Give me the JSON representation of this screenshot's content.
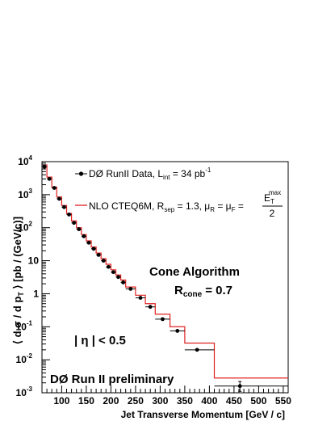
{
  "chart_data": {
    "type": "scatter",
    "xlabel": "Jet Transverse Momentum [GeV / c]",
    "ylabel": "⟨ d σ / d pT ⟩ [pb / (GeV/c)]",
    "xlim": [
      60,
      560
    ],
    "ylim": [
      0.001,
      10000
    ],
    "yscale": "log",
    "grid": false,
    "x_ticks": [
      100,
      150,
      200,
      250,
      300,
      350,
      400,
      450,
      500,
      550
    ],
    "y_ticks": [
      {
        "value": 0.001,
        "mantissa": "10",
        "exp": "-3"
      },
      {
        "value": 0.01,
        "mantissa": "10",
        "exp": "-2"
      },
      {
        "value": 0.1,
        "mantissa": "10",
        "exp": "-1"
      },
      {
        "value": 1,
        "mantissa": "1",
        "exp": ""
      },
      {
        "value": 10,
        "mantissa": "10",
        "exp": ""
      },
      {
        "value": 100,
        "mantissa": "10",
        "exp": "2"
      },
      {
        "value": 1000,
        "mantissa": "10",
        "exp": "3"
      },
      {
        "value": 10000,
        "mantissa": "10",
        "exp": "4"
      }
    ],
    "series": [
      {
        "name": "DØ RunII Data, L_int = 34 pb^-1",
        "style": "points",
        "color": "#000000",
        "points": [
          {
            "x": 65,
            "y": 7000,
            "xlo": 60,
            "xhi": 70
          },
          {
            "x": 75,
            "y": 3000,
            "xlo": 70,
            "xhi": 80
          },
          {
            "x": 85,
            "y": 1600,
            "xlo": 80,
            "xhi": 90
          },
          {
            "x": 95,
            "y": 750,
            "xlo": 90,
            "xhi": 100
          },
          {
            "x": 105,
            "y": 420,
            "xlo": 100,
            "xhi": 110
          },
          {
            "x": 115,
            "y": 250,
            "xlo": 110,
            "xhi": 120
          },
          {
            "x": 125,
            "y": 140,
            "xlo": 120,
            "xhi": 130
          },
          {
            "x": 135,
            "y": 90,
            "xlo": 130,
            "xhi": 140
          },
          {
            "x": 145,
            "y": 55,
            "xlo": 140,
            "xhi": 150
          },
          {
            "x": 155,
            "y": 35,
            "xlo": 150,
            "xhi": 160
          },
          {
            "x": 165,
            "y": 23,
            "xlo": 160,
            "xhi": 170
          },
          {
            "x": 175,
            "y": 15,
            "xlo": 170,
            "xhi": 180
          },
          {
            "x": 185,
            "y": 10,
            "xlo": 180,
            "xhi": 190
          },
          {
            "x": 195,
            "y": 6.5,
            "xlo": 190,
            "xhi": 200
          },
          {
            "x": 205,
            "y": 4.5,
            "xlo": 200,
            "xhi": 210
          },
          {
            "x": 215,
            "y": 3.2,
            "xlo": 210,
            "xhi": 220
          },
          {
            "x": 225,
            "y": 2.2,
            "xlo": 220,
            "xhi": 230
          },
          {
            "x": 240,
            "y": 1.4,
            "xlo": 230,
            "xhi": 250
          },
          {
            "x": 260,
            "y": 0.75,
            "xlo": 250,
            "xhi": 270
          },
          {
            "x": 280,
            "y": 0.4,
            "xlo": 270,
            "xhi": 290
          },
          {
            "x": 305,
            "y": 0.17,
            "xlo": 290,
            "xhi": 320
          },
          {
            "x": 335,
            "y": 0.075,
            "xlo": 320,
            "xhi": 350
          },
          {
            "x": 375,
            "y": 0.02,
            "xlo": 350,
            "xhi": 410
          },
          {
            "x": 462,
            "y": 0.0016,
            "xlo": 410,
            "xhi": 560,
            "ylo": 0.0011,
            "yhi": 0.0022
          }
        ]
      },
      {
        "name": "NLO CTEQ6M, R_sep = 1.3, μ_R = μ_F = E_T^max / 2",
        "style": "histogram",
        "color": "#e02020",
        "bins": [
          {
            "lo": 60,
            "hi": 70,
            "y": 8000
          },
          {
            "lo": 70,
            "hi": 80,
            "y": 3400
          },
          {
            "lo": 80,
            "hi": 90,
            "y": 1700
          },
          {
            "lo": 90,
            "hi": 100,
            "y": 850
          },
          {
            "lo": 100,
            "hi": 110,
            "y": 470
          },
          {
            "lo": 110,
            "hi": 120,
            "y": 270
          },
          {
            "lo": 120,
            "hi": 130,
            "y": 160
          },
          {
            "lo": 130,
            "hi": 140,
            "y": 100
          },
          {
            "lo": 140,
            "hi": 150,
            "y": 62
          },
          {
            "lo": 150,
            "hi": 160,
            "y": 40
          },
          {
            "lo": 160,
            "hi": 170,
            "y": 26
          },
          {
            "lo": 170,
            "hi": 180,
            "y": 17
          },
          {
            "lo": 180,
            "hi": 190,
            "y": 11.5
          },
          {
            "lo": 190,
            "hi": 200,
            "y": 7.8
          },
          {
            "lo": 200,
            "hi": 210,
            "y": 5.3
          },
          {
            "lo": 210,
            "hi": 220,
            "y": 3.7
          },
          {
            "lo": 220,
            "hi": 230,
            "y": 2.6
          },
          {
            "lo": 230,
            "hi": 250,
            "y": 1.6
          },
          {
            "lo": 250,
            "hi": 270,
            "y": 0.9
          },
          {
            "lo": 270,
            "hi": 290,
            "y": 0.5
          },
          {
            "lo": 290,
            "hi": 320,
            "y": 0.24
          },
          {
            "lo": 320,
            "hi": 350,
            "y": 0.1
          },
          {
            "lo": 350,
            "hi": 410,
            "y": 0.032
          },
          {
            "lo": 410,
            "hi": 560,
            "y": 0.0028
          }
        ]
      }
    ],
    "legend": {
      "data_label": "DØ RunII Data, L",
      "data_lumi_sub": "int",
      "data_lumi_value": " = 34 pb",
      "data_lumi_exp": "-1",
      "theory_label": "NLO CTEQ6M,  R",
      "theory_sep_sub": "sep",
      "theory_sep_value": " = 1.3,  μ",
      "theory_mu_r_sub": "R",
      "theory_mu_eq": " = μ",
      "theory_mu_f_sub": "F",
      "theory_eq": " =",
      "frac_num_base": "E",
      "frac_num_sub": "T",
      "frac_num_sup": "max",
      "frac_den": "2"
    },
    "annotations": {
      "algorithm": "Cone Algorithm",
      "rcone_label": "R",
      "rcone_sub": "cone",
      "rcone_value": "= 0.7",
      "eta_cut": "| η | < 0.5",
      "experiment": "DØ Run II preliminary"
    },
    "ylabel_parts": {
      "pre": "⟨ d σ / d p",
      "sub": "T",
      "post": " ⟩ [pb / (GeV/c)]"
    }
  }
}
